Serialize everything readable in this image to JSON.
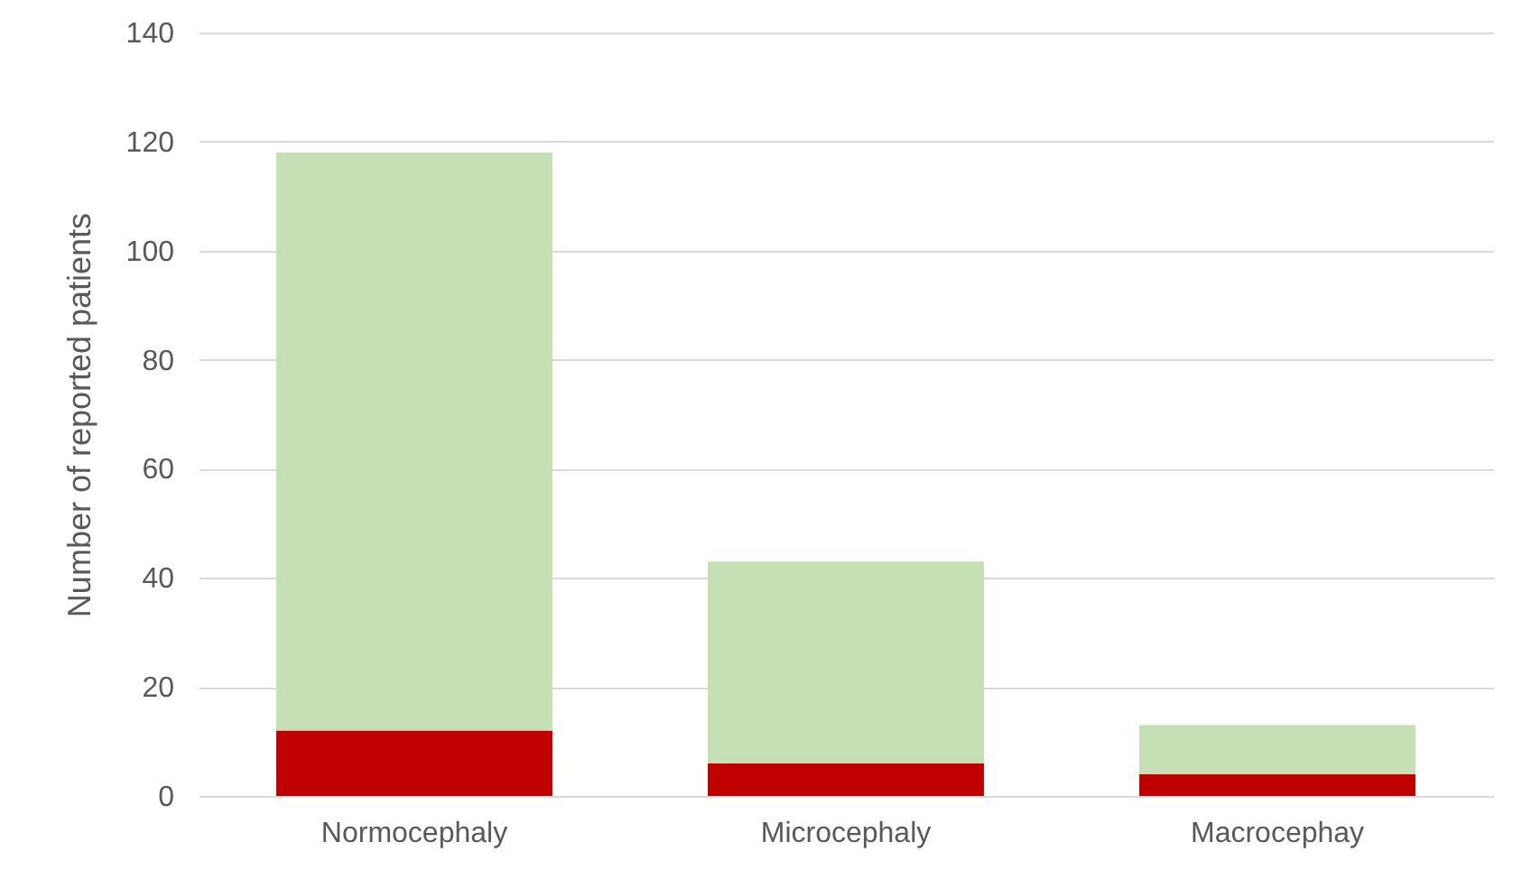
{
  "chart_data": {
    "type": "bar",
    "stacked": true,
    "ylabel": "Number of reported patients",
    "categories": [
      "Normocephaly",
      "Microcephaly",
      "Macrocephay"
    ],
    "series": [
      {
        "color": "#c00000",
        "values": [
          12,
          6,
          4
        ]
      },
      {
        "color": "#c5e0b4",
        "values": [
          106,
          37,
          9
        ]
      }
    ],
    "ylim": [
      0,
      140
    ],
    "yticks": [
      0,
      20,
      40,
      60,
      80,
      100,
      120,
      140
    ],
    "grid": "y"
  }
}
